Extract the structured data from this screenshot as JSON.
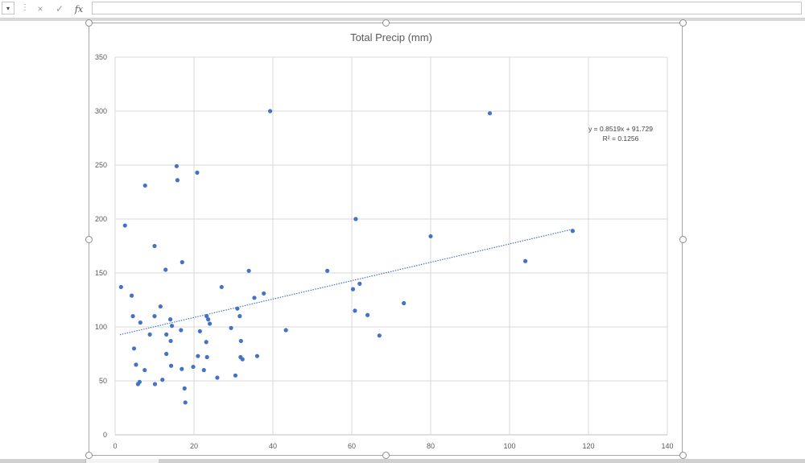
{
  "formula_bar": {
    "name_box_arrow": "▾",
    "cancel_icon": "×",
    "enter_icon": "✓",
    "fx_label": "fx"
  },
  "chart_data": {
    "type": "scatter",
    "title": "Total Precip (mm)",
    "xlim": [
      0,
      140
    ],
    "ylim": [
      0,
      350
    ],
    "x_ticks": [
      0,
      20,
      40,
      60,
      80,
      100,
      120,
      140
    ],
    "y_ticks": [
      0,
      50,
      100,
      150,
      200,
      250,
      300,
      350
    ],
    "grid": true,
    "marker_color": "#4472c4",
    "trendline": {
      "slope": 0.8519,
      "intercept": 91.729,
      "x_range": [
        1.2,
        116
      ],
      "equation": "y = 0.8519x + 91.729",
      "r_squared": "R² = 0.1256"
    },
    "points": [
      [
        1.5,
        137
      ],
      [
        2.5,
        194
      ],
      [
        4.2,
        129
      ],
      [
        4.5,
        110
      ],
      [
        4.8,
        80
      ],
      [
        5.3,
        65
      ],
      [
        5.8,
        47
      ],
      [
        6.2,
        49
      ],
      [
        6.4,
        104
      ],
      [
        7.5,
        60
      ],
      [
        7.6,
        231
      ],
      [
        8.8,
        93
      ],
      [
        10.0,
        110
      ],
      [
        10.0,
        175
      ],
      [
        10.1,
        47
      ],
      [
        11.5,
        119
      ],
      [
        12.0,
        51
      ],
      [
        12.8,
        153
      ],
      [
        13.0,
        93
      ],
      [
        13.0,
        75
      ],
      [
        14.0,
        107
      ],
      [
        14.1,
        87
      ],
      [
        14.2,
        64
      ],
      [
        14.4,
        101
      ],
      [
        15.6,
        249
      ],
      [
        15.8,
        236
      ],
      [
        16.7,
        97
      ],
      [
        16.9,
        61
      ],
      [
        17.0,
        160
      ],
      [
        17.6,
        43
      ],
      [
        17.8,
        30
      ],
      [
        19.8,
        63
      ],
      [
        20.8,
        243
      ],
      [
        21.0,
        73
      ],
      [
        21.5,
        96
      ],
      [
        22.5,
        60
      ],
      [
        23.1,
        86
      ],
      [
        23.2,
        110
      ],
      [
        23.3,
        72
      ],
      [
        23.6,
        107
      ],
      [
        24.0,
        103
      ],
      [
        25.9,
        53
      ],
      [
        27.0,
        137
      ],
      [
        29.4,
        99
      ],
      [
        30.5,
        55
      ],
      [
        31.0,
        117
      ],
      [
        31.6,
        110
      ],
      [
        31.8,
        72
      ],
      [
        31.9,
        87
      ],
      [
        32.3,
        70
      ],
      [
        33.9,
        152
      ],
      [
        35.3,
        127
      ],
      [
        36.0,
        73
      ],
      [
        37.7,
        131
      ],
      [
        39.3,
        300
      ],
      [
        43.3,
        97
      ],
      [
        53.8,
        152
      ],
      [
        60.3,
        135
      ],
      [
        60.8,
        115
      ],
      [
        61.0,
        200
      ],
      [
        62.0,
        140
      ],
      [
        64.0,
        111
      ],
      [
        67.0,
        92
      ],
      [
        73.2,
        122
      ],
      [
        80.0,
        184
      ],
      [
        95.0,
        298
      ],
      [
        104.0,
        161
      ],
      [
        116.0,
        189
      ]
    ]
  }
}
